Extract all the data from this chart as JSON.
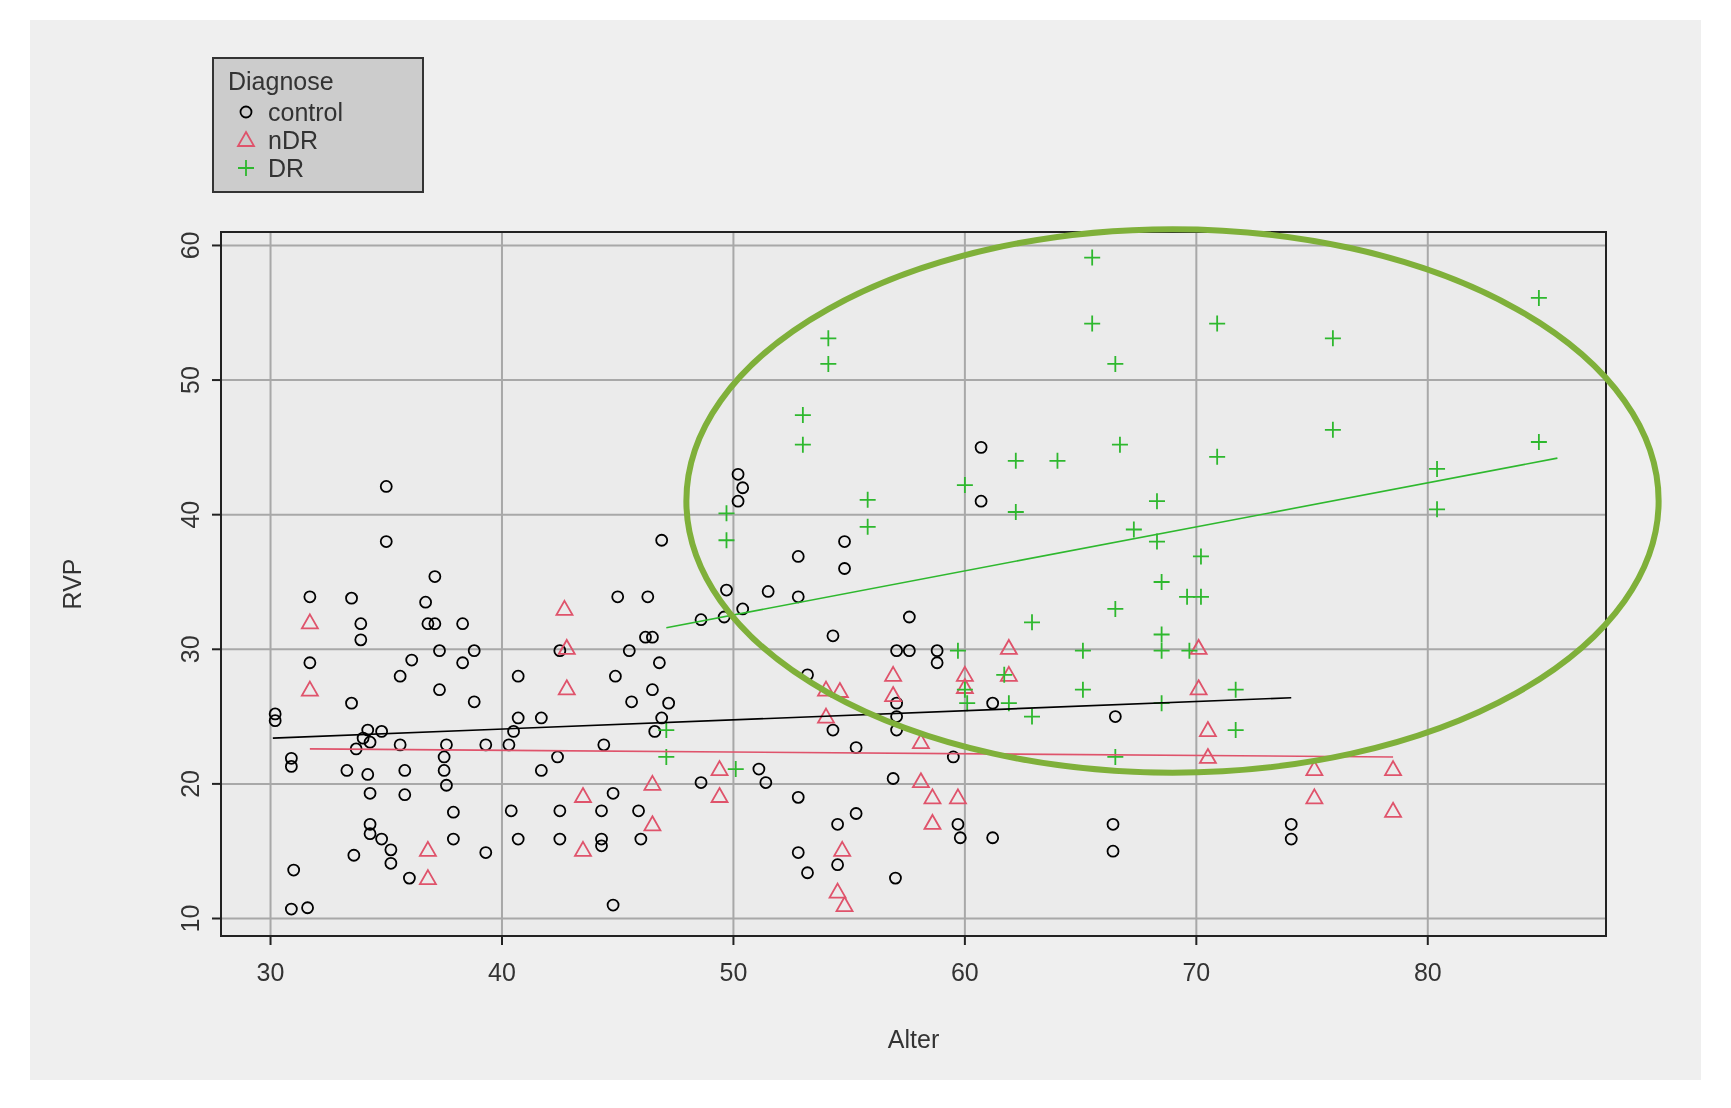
{
  "chart_data": {
    "type": "scatter",
    "xlabel": "Alter",
    "ylabel": "RVP",
    "legend_title": "Diagnose",
    "legend": "top left",
    "grid": true,
    "xlim": [
      27.86,
      87.7
    ],
    "ylim": [
      8.7,
      61
    ],
    "xticks": [
      30,
      40,
      50,
      60,
      70,
      80
    ],
    "yticks": [
      10,
      20,
      30,
      40,
      50,
      60
    ],
    "series": [
      {
        "name": "control",
        "marker": "circle",
        "color": "#000000",
        "x": [
          30.2,
          30.2,
          30.9,
          30.9,
          31.0,
          30.9,
          31.6,
          31.7,
          31.7,
          33.5,
          33.9,
          33.9,
          33.5,
          34.2,
          34.0,
          34.3,
          33.7,
          33.3,
          34.2,
          34.3,
          35.0,
          35.0,
          34.3,
          34.3,
          34.8,
          35.2,
          35.2,
          33.6,
          34.8,
          35.6,
          36.1,
          35.6,
          35.8,
          35.8,
          36.7,
          37.1,
          36.8,
          37.1,
          37.3,
          38.3,
          38.3,
          38.8,
          37.3,
          38.8,
          37.6,
          37.5,
          37.5,
          37.6,
          37.9,
          37.9,
          39.3,
          39.3,
          36.0,
          40.3,
          40.5,
          40.7,
          40.7,
          40.4,
          40.7,
          41.7,
          41.7,
          42.4,
          42.5,
          42.5,
          42.5,
          44.4,
          44.3,
          44.3,
          44.3,
          44.8,
          44.8,
          45.0,
          44.9,
          45.5,
          45.6,
          46.3,
          46.2,
          46.5,
          46.5,
          46.8,
          46.9,
          46.6,
          46.9,
          47.2,
          45.9,
          46.0,
          48.6,
          48.6,
          49.6,
          49.7,
          50.4,
          50.2,
          50.4,
          50.2,
          51.5,
          51.1,
          51.4,
          52.8,
          52.8,
          52.8,
          52.8,
          53.2,
          53.2,
          54.8,
          54.8,
          54.3,
          54.3,
          54.5,
          54.5,
          55.3,
          55.3,
          57.6,
          57.05,
          57.6,
          58.8,
          58.8,
          57.05,
          57.05,
          57.05,
          56.9,
          57.0,
          59.5,
          59.7,
          59.8,
          61.2,
          61.2,
          60.7,
          60.7,
          66.5,
          66.4,
          66.4,
          74.1,
          74.1
        ],
        "values": [
          25.2,
          24.7,
          21.9,
          21.3,
          13.6,
          10.7,
          10.8,
          33.9,
          29.0,
          33.8,
          31.9,
          30.7,
          26.0,
          24.0,
          23.4,
          23.1,
          22.6,
          21.0,
          20.7,
          19.3,
          42.1,
          38.0,
          17.0,
          16.3,
          15.9,
          15.1,
          14.1,
          14.7,
          23.9,
          28.0,
          29.2,
          22.9,
          21.0,
          19.2,
          33.5,
          35.4,
          31.9,
          31.9,
          29.9,
          29.0,
          31.9,
          29.9,
          27.0,
          26.1,
          22.9,
          22.0,
          21.0,
          19.9,
          17.9,
          15.9,
          14.9,
          22.9,
          13.0,
          22.9,
          23.9,
          24.9,
          28.0,
          18.0,
          15.9,
          24.9,
          21.0,
          22.0,
          29.9,
          18.0,
          15.9,
          22.9,
          18.0,
          15.9,
          15.4,
          19.3,
          11.0,
          33.9,
          28.0,
          29.9,
          26.1,
          33.9,
          30.9,
          30.9,
          27.0,
          29.0,
          38.1,
          23.9,
          24.9,
          26.0,
          18.0,
          15.9,
          32.2,
          20.1,
          32.4,
          34.4,
          33.0,
          43.0,
          42.0,
          41.0,
          34.3,
          21.1,
          20.1,
          36.9,
          33.9,
          19.0,
          14.9,
          13.4,
          28.1,
          38.0,
          36.0,
          31.0,
          24.0,
          17.0,
          14.0,
          17.8,
          22.7,
          32.4,
          29.9,
          29.9,
          29.9,
          29.0,
          26.0,
          25.0,
          24.0,
          20.4,
          13.0,
          22.0,
          17.0,
          16.0,
          16.0,
          26.0,
          45.0,
          41.0,
          25.0,
          17.0,
          15.0,
          17.0,
          15.9
        ]
      },
      {
        "name": "nDR",
        "marker": "triangle",
        "color": "#df536b",
        "x": [
          31.7,
          31.7,
          36.8,
          36.8,
          42.7,
          42.8,
          42.8,
          43.5,
          43.5,
          46.5,
          46.5,
          49.4,
          49.4,
          54.0,
          54.6,
          54.0,
          56.9,
          56.9,
          58.1,
          58.1,
          58.6,
          59.7,
          58.6,
          60.0,
          60.0,
          61.9,
          61.9,
          54.7,
          54.5,
          54.8,
          70.1,
          70.1,
          70.5,
          70.5,
          75.1,
          75.1,
          78.5,
          78.5
        ],
        "values": [
          32.0,
          27.0,
          15.1,
          13.0,
          33.0,
          30.1,
          27.1,
          19.1,
          15.1,
          20.0,
          17.0,
          21.1,
          19.1,
          27.0,
          26.9,
          25.0,
          28.1,
          26.6,
          23.1,
          20.2,
          19.0,
          19.0,
          17.1,
          28.1,
          27.2,
          30.1,
          28.1,
          15.1,
          12.0,
          11.0,
          30.1,
          27.1,
          24.0,
          22.0,
          21.1,
          19.0,
          21.1,
          18.0
        ]
      },
      {
        "name": "DR",
        "marker": "cross",
        "color": "#2eb82e",
        "x": [
          47.1,
          47.1,
          49.7,
          49.7,
          50.1,
          53.0,
          53.0,
          54.1,
          54.1,
          55.8,
          55.8,
          59.7,
          60.0,
          60.1,
          60.0,
          61.7,
          61.9,
          62.2,
          62.2,
          62.9,
          62.9,
          64.0,
          65.1,
          65.1,
          65.5,
          65.5,
          66.5,
          66.7,
          66.5,
          66.5,
          67.3,
          68.3,
          68.3,
          68.5,
          68.5,
          68.5,
          68.5,
          69.6,
          70.2,
          69.7,
          70.2,
          70.9,
          70.9,
          71.7,
          71.7,
          75.9,
          75.9,
          80.4,
          80.4,
          84.8,
          84.8
        ],
        "values": [
          24.0,
          22.0,
          40.1,
          38.1,
          21.1,
          47.4,
          45.2,
          53.1,
          51.2,
          41.1,
          39.1,
          29.9,
          27.0,
          26.0,
          42.2,
          28.1,
          26.0,
          44.0,
          40.2,
          32.0,
          25.0,
          44.0,
          29.9,
          27.0,
          59.1,
          54.2,
          51.2,
          45.2,
          33.0,
          22.0,
          38.9,
          41.0,
          38.0,
          35.0,
          31.1,
          29.9,
          26.0,
          33.9,
          33.9,
          29.9,
          36.9,
          54.2,
          44.3,
          27.0,
          24.0,
          53.1,
          46.3,
          43.4,
          40.4,
          56.1,
          45.4
        ]
      },
      {
        "type": "line",
        "color": "#000000",
        "x": [
          30.1,
          74.1
        ],
        "values": [
          23.4,
          26.4
        ]
      },
      {
        "type": "line",
        "color": "#df536b",
        "x": [
          31.7,
          78.5
        ],
        "values": [
          22.6,
          22.0
        ]
      },
      {
        "type": "line",
        "color": "#2eb82e",
        "x": [
          47.1,
          85.6
        ],
        "values": [
          31.6,
          44.2
        ]
      }
    ]
  }
}
